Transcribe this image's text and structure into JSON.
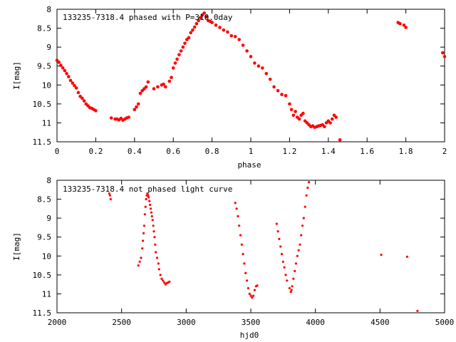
{
  "chart_data": [
    {
      "type": "scatter",
      "title": "133235-7318.4 phased with P=310.0day",
      "xlabel": "phase",
      "ylabel": "I[mag]",
      "xlim": [
        0,
        2
      ],
      "ylim": [
        11.5,
        8
      ],
      "y_inverted": true,
      "xticks": [
        "0",
        "0.2",
        "0.4",
        "0.6",
        "0.8",
        "1",
        "1.2",
        "1.4",
        "1.6",
        "1.8",
        "2"
      ],
      "yticks": [
        "8",
        "8.5",
        "9",
        "9.5",
        "10",
        "10.5",
        "11",
        "11.5"
      ],
      "marker_color": "#ff0000",
      "x": [
        0.0,
        0.01,
        0.02,
        0.03,
        0.04,
        0.05,
        0.06,
        0.07,
        0.08,
        0.09,
        0.1,
        0.11,
        0.12,
        0.13,
        0.14,
        0.15,
        0.16,
        0.17,
        0.18,
        0.19,
        0.2,
        0.28,
        0.3,
        0.31,
        0.32,
        0.33,
        0.34,
        0.35,
        0.36,
        0.37,
        0.4,
        0.41,
        0.42,
        0.43,
        0.44,
        0.45,
        0.46,
        0.47,
        0.5,
        0.52,
        0.54,
        0.55,
        0.56,
        0.58,
        0.59,
        0.6,
        0.61,
        0.62,
        0.63,
        0.64,
        0.65,
        0.66,
        0.67,
        0.68,
        0.69,
        0.7,
        0.71,
        0.72,
        0.73,
        0.74,
        0.75,
        0.76,
        0.77,
        0.78,
        0.79,
        0.8,
        0.82,
        0.84,
        0.86,
        0.88,
        0.9,
        0.92,
        0.94,
        0.96,
        0.98,
        1.0,
        1.02,
        1.04,
        1.06,
        1.08,
        1.1,
        1.12,
        1.14,
        1.16,
        1.18,
        1.2,
        1.21,
        1.22,
        1.23,
        1.24,
        1.25,
        1.26,
        1.27,
        1.28,
        1.29,
        1.3,
        1.31,
        1.32,
        1.33,
        1.34,
        1.35,
        1.36,
        1.37,
        1.38,
        1.39,
        1.4,
        1.41,
        1.42,
        1.43,
        1.44,
        1.46,
        1.76,
        1.77,
        1.79,
        1.8,
        1.99,
        2.0
      ],
      "y": [
        9.35,
        9.4,
        9.48,
        9.55,
        9.62,
        9.7,
        9.78,
        9.88,
        9.95,
        10.02,
        10.08,
        10.2,
        10.3,
        10.35,
        10.42,
        10.5,
        10.55,
        10.6,
        10.62,
        10.65,
        10.68,
        10.87,
        10.9,
        10.9,
        10.92,
        10.88,
        10.93,
        10.9,
        10.87,
        10.85,
        10.65,
        10.58,
        10.5,
        10.22,
        10.15,
        10.1,
        10.05,
        9.92,
        10.1,
        10.05,
        10.0,
        9.98,
        10.05,
        9.9,
        9.8,
        9.55,
        9.42,
        9.32,
        9.2,
        9.1,
        9.0,
        8.9,
        8.8,
        8.75,
        8.62,
        8.55,
        8.47,
        8.38,
        8.3,
        8.22,
        8.15,
        8.1,
        8.2,
        8.3,
        8.32,
        8.35,
        8.42,
        8.48,
        8.55,
        8.6,
        8.7,
        8.72,
        8.8,
        8.95,
        9.1,
        9.25,
        9.42,
        9.5,
        9.55,
        9.7,
        9.85,
        10.05,
        10.15,
        10.25,
        10.28,
        10.5,
        10.65,
        10.8,
        10.7,
        10.85,
        10.9,
        10.8,
        10.75,
        10.95,
        11.0,
        11.05,
        11.1,
        11.08,
        11.12,
        11.1,
        11.08,
        11.07,
        11.05,
        11.1,
        11.0,
        10.95,
        11.0,
        10.9,
        10.8,
        10.85,
        11.45,
        8.35,
        8.38,
        8.42,
        8.48,
        9.15,
        9.25
      ]
    },
    {
      "type": "scatter",
      "title": "133235-7318.4 not phased light curve",
      "xlabel": "hjd0",
      "ylabel": "I[mag]",
      "xlim": [
        2000,
        5000
      ],
      "ylim": [
        11.5,
        8
      ],
      "y_inverted": true,
      "xticks": [
        "2000",
        "2500",
        "3000",
        "3500",
        "4000",
        "4500",
        "5000"
      ],
      "yticks": [
        "8",
        "8.5",
        "9",
        "9.5",
        "10",
        "10.5",
        "11",
        "11.5"
      ],
      "marker_color": "#ff0000",
      "x": [
        2405,
        2410,
        2415,
        2630,
        2640,
        2650,
        2660,
        2665,
        2670,
        2675,
        2680,
        2685,
        2690,
        2695,
        2700,
        2705,
        2710,
        2715,
        2720,
        2725,
        2730,
        2735,
        2740,
        2745,
        2750,
        2755,
        2760,
        2765,
        2775,
        2785,
        2790,
        2800,
        2810,
        2820,
        2830,
        2840,
        2850,
        2860,
        2870,
        3380,
        3390,
        3400,
        3410,
        3420,
        3430,
        3440,
        3450,
        3460,
        3470,
        3480,
        3490,
        3500,
        3510,
        3520,
        3530,
        3540,
        3550,
        3700,
        3710,
        3720,
        3730,
        3740,
        3750,
        3760,
        3770,
        3780,
        3800,
        3810,
        3815,
        3820,
        3830,
        3840,
        3850,
        3860,
        3870,
        3880,
        3890,
        3900,
        3910,
        3920,
        3930,
        3940,
        3950,
        4510,
        4710,
        4790
      ],
      "y": [
        8.35,
        8.4,
        8.5,
        10.25,
        10.15,
        10.05,
        9.8,
        9.6,
        9.4,
        9.2,
        8.9,
        8.7,
        8.5,
        8.4,
        8.35,
        8.4,
        8.45,
        8.55,
        8.65,
        8.75,
        8.85,
        8.95,
        9.05,
        9.2,
        9.35,
        9.5,
        9.7,
        9.9,
        10.05,
        10.2,
        10.35,
        10.5,
        10.6,
        10.65,
        10.7,
        10.75,
        10.72,
        10.7,
        10.68,
        8.6,
        8.75,
        8.95,
        9.2,
        9.45,
        9.7,
        9.95,
        10.2,
        10.45,
        10.65,
        10.85,
        11.0,
        11.05,
        11.1,
        11.05,
        10.9,
        10.8,
        10.78,
        9.15,
        9.35,
        9.55,
        9.75,
        9.95,
        10.15,
        10.3,
        10.5,
        10.65,
        10.85,
        10.95,
        10.9,
        10.8,
        10.6,
        10.4,
        10.2,
        10.0,
        9.85,
        9.7,
        9.45,
        9.2,
        9.0,
        8.7,
        8.4,
        8.2,
        8.05,
        9.97,
        10.02,
        11.45
      ]
    }
  ]
}
